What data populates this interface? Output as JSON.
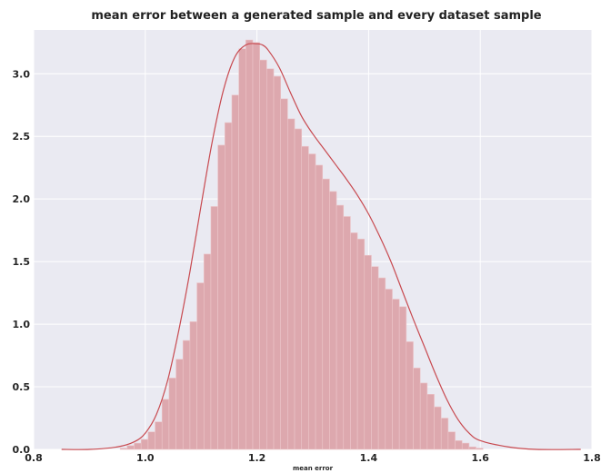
{
  "chart_data": {
    "type": "bar",
    "title": "mean error between a generated sample and every dataset sample",
    "xlabel": "mean error",
    "ylabel": "",
    "xlim": [
      0.8,
      1.8
    ],
    "ylim": [
      0,
      3.35
    ],
    "xticks": [
      "0.8",
      "1.0",
      "1.2",
      "1.4",
      "1.6",
      "1.8"
    ],
    "yticks": [
      "0.0",
      "0.5",
      "1.0",
      "1.5",
      "2.0",
      "2.5",
      "3.0"
    ],
    "grid": true,
    "colors": {
      "background": "#eaeaf2",
      "grid": "#ffffff",
      "bars": "#dda8ae",
      "bar_edge": "#ecc6ca",
      "kde": "#c84a50"
    },
    "histogram": {
      "bin_start": 0.955,
      "bin_width": 0.0125,
      "counts": [
        0.01,
        0.03,
        0.05,
        0.08,
        0.14,
        0.22,
        0.4,
        0.57,
        0.72,
        0.87,
        1.02,
        1.33,
        1.56,
        1.94,
        2.43,
        2.61,
        2.83,
        3.2,
        3.27,
        3.25,
        3.11,
        3.04,
        2.98,
        2.8,
        2.64,
        2.56,
        2.42,
        2.36,
        2.27,
        2.16,
        2.06,
        1.95,
        1.86,
        1.73,
        1.68,
        1.55,
        1.46,
        1.37,
        1.28,
        1.2,
        1.14,
        0.86,
        0.65,
        0.53,
        0.44,
        0.34,
        0.25,
        0.14,
        0.07,
        0.05,
        0.02,
        0.01
      ]
    },
    "kde": {
      "x": [
        0.85,
        0.9,
        0.95,
        0.98,
        1.0,
        1.02,
        1.04,
        1.06,
        1.08,
        1.1,
        1.12,
        1.14,
        1.16,
        1.18,
        1.2,
        1.21,
        1.22,
        1.24,
        1.26,
        1.28,
        1.3,
        1.32,
        1.34,
        1.36,
        1.38,
        1.4,
        1.42,
        1.44,
        1.46,
        1.48,
        1.5,
        1.52,
        1.54,
        1.56,
        1.58,
        1.6,
        1.65,
        1.7,
        1.78
      ],
      "y": [
        0.0,
        0.0,
        0.02,
        0.06,
        0.13,
        0.28,
        0.55,
        0.95,
        1.42,
        1.95,
        2.46,
        2.87,
        3.13,
        3.23,
        3.24,
        3.23,
        3.19,
        3.05,
        2.85,
        2.66,
        2.52,
        2.4,
        2.28,
        2.16,
        2.03,
        1.88,
        1.7,
        1.5,
        1.27,
        1.04,
        0.82,
        0.6,
        0.4,
        0.24,
        0.13,
        0.07,
        0.02,
        0.0,
        0.0
      ]
    }
  }
}
